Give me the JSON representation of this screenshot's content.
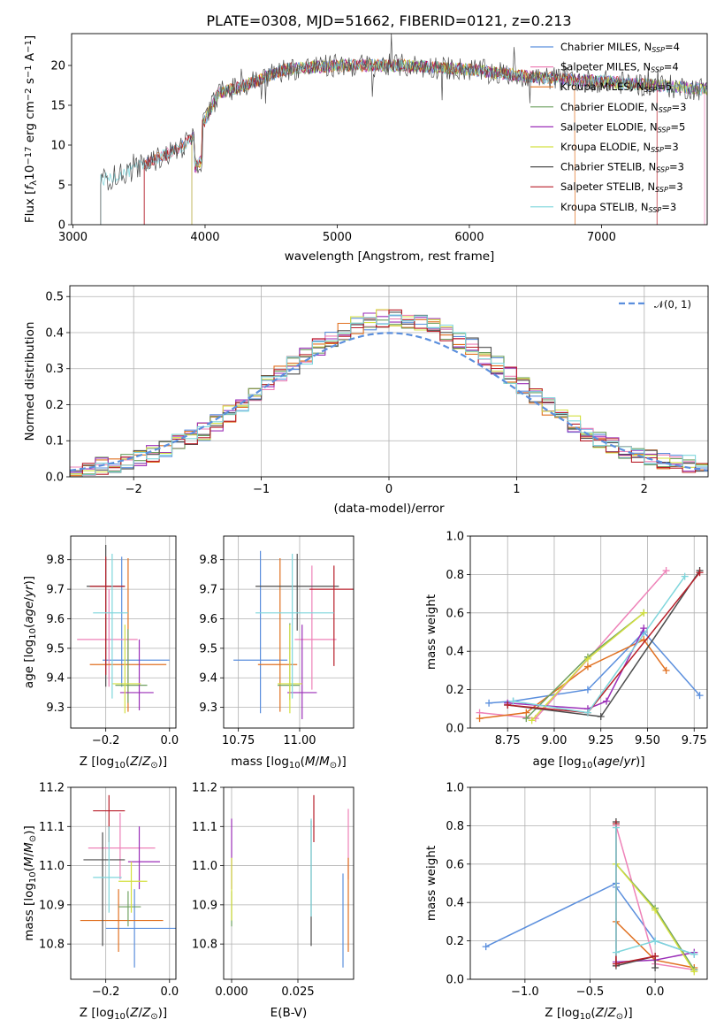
{
  "figure": {
    "title": "PLATE=0308, MJD=51662, FIBERID=0121, z=0.213"
  },
  "colors": {
    "Chabrier MILES": "#5b8fdd",
    "Salpeter MILES": "#ee82b8",
    "Kroupa MILES": "#e07020",
    "Chabrier ELODIE": "#6fa060",
    "Salpeter ELODIE": "#9b2fb8",
    "Kroupa ELODIE": "#d4e040",
    "Chabrier STELIB": "#4d4d4d",
    "Salpeter STELIB": "#b81f2a",
    "Kroupa STELIB": "#7fd6dc"
  },
  "chart_data": [
    {
      "id": "spectrum",
      "type": "line",
      "xlabel": "wavelength [Angstrom, rest frame]",
      "ylabel": "Flux [f_λ10^-17 erg cm^-2 s^-1 A^-1]",
      "xlim": [
        2990,
        7800
      ],
      "ylim": [
        0,
        24
      ],
      "xticks": [
        3000,
        4000,
        5000,
        6000,
        7000
      ],
      "yticks": [
        0,
        5,
        10,
        15,
        20
      ],
      "legend": "top-right",
      "legend_entries": [
        "Chabrier MILES, N_SSP=4",
        "Salpeter MILES, N_SSP=4",
        "Kroupa MILES, N_SSP=5",
        "Chabrier ELODIE, N_SSP=3",
        "Salpeter ELODIE, N_SSP=5",
        "Kroupa ELODIE, N_SSP=3",
        "Chabrier STELIB, N_SSP=3",
        "Salpeter STELIB, N_SSP=3",
        "Kroupa STELIB, N_SSP=3"
      ],
      "series_start_wavelength": {
        "Chabrier MILES": 3540,
        "Salpeter MILES": 3540,
        "Kroupa MILES": 3540,
        "Chabrier ELODIE": 3900,
        "Salpeter ELODIE": 3900,
        "Kroupa ELODIE": 3900,
        "Chabrier STELIB": 3210,
        "Salpeter STELIB": 3540,
        "Kroupa STELIB": 3210
      },
      "continuum": {
        "wavelength": [
          3210,
          3400,
          3600,
          3800,
          3950,
          4100,
          4300,
          4600,
          5000,
          5500,
          6000,
          6500,
          7000,
          7400,
          7800
        ],
        "flux": [
          5.5,
          6.5,
          8.0,
          9.5,
          11.5,
          16.5,
          17.5,
          19.5,
          20.0,
          20.0,
          19.5,
          18.5,
          18.0,
          17.5,
          17.0
        ]
      }
    },
    {
      "id": "residuals",
      "type": "line",
      "xlabel": "(data-model)/error",
      "ylabel": "Normed distribution",
      "xlim": [
        -2.5,
        2.5
      ],
      "ylim": [
        0,
        0.53
      ],
      "xticks": [
        -2,
        -1,
        0,
        1,
        2
      ],
      "yticks": [
        0.0,
        0.1,
        0.2,
        0.3,
        0.4,
        0.5
      ],
      "legend": "top-right",
      "reference_curve": "𝒩(0, 1)",
      "bin_width": 0.1,
      "histogram_mean": [
        0.02,
        0.025,
        0.03,
        0.035,
        0.04,
        0.05,
        0.065,
        0.08,
        0.095,
        0.11,
        0.125,
        0.15,
        0.175,
        0.205,
        0.235,
        0.26,
        0.285,
        0.31,
        0.335,
        0.36,
        0.385,
        0.405,
        0.42,
        0.43,
        0.44,
        0.44,
        0.435,
        0.425,
        0.415,
        0.4,
        0.38,
        0.36,
        0.335,
        0.31,
        0.28,
        0.25,
        0.22,
        0.195,
        0.17,
        0.145,
        0.12,
        0.1,
        0.085,
        0.07,
        0.06,
        0.05,
        0.045,
        0.04,
        0.035,
        0.03
      ]
    },
    {
      "id": "age-vs-Z",
      "type": "scatter",
      "xlabel": "Z [log10(Z/Z⊙)]",
      "ylabel": "age [log10(age/yr)]",
      "xlim": [
        -0.31,
        0.02
      ],
      "ylim": [
        9.23,
        9.88
      ],
      "xticks": [
        -0.2,
        0.0
      ],
      "yticks": [
        9.3,
        9.4,
        9.5,
        9.6,
        9.7,
        9.8
      ],
      "points": [
        {
          "model": "Chabrier MILES",
          "x": -0.15,
          "xerr": [
            0.06,
            0.15
          ],
          "y": 9.46,
          "yerr": [
            0.09,
            0.35
          ]
        },
        {
          "model": "Salpeter MILES",
          "x": -0.19,
          "xerr": [
            0.1,
            0.09
          ],
          "y": 9.53,
          "yerr": [
            0.16,
            0.17
          ]
        },
        {
          "model": "Kroupa MILES",
          "x": -0.13,
          "xerr": [
            0.12,
            0.12
          ],
          "y": 9.445,
          "yerr": [
            0.16,
            0.36
          ]
        },
        {
          "model": "Chabrier ELODIE",
          "x": -0.13,
          "xerr": [
            0.04,
            0.06
          ],
          "y": 9.375,
          "yerr": [
            0.06,
            0.19
          ]
        },
        {
          "model": "Salpeter ELODIE",
          "x": -0.095,
          "xerr": [
            0.06,
            0.045
          ],
          "y": 9.35,
          "yerr": [
            0.06,
            0.18
          ]
        },
        {
          "model": "Kroupa ELODIE",
          "x": -0.14,
          "xerr": [
            0.04,
            0.05
          ],
          "y": 9.38,
          "yerr": [
            0.1,
            0.2
          ]
        },
        {
          "model": "Chabrier STELIB",
          "x": -0.2,
          "xerr": [
            0.06,
            0.06
          ],
          "y": 9.71,
          "yerr": [
            0.34,
            0.14
          ]
        },
        {
          "model": "Salpeter STELIB",
          "x": -0.2,
          "xerr": [
            0.05,
            0.06
          ],
          "y": 9.71,
          "yerr": [
            0.3,
            0.1
          ]
        },
        {
          "model": "Kroupa STELIB",
          "x": -0.18,
          "xerr": [
            0.06,
            0.05
          ],
          "y": 9.62,
          "yerr": [
            0.29,
            0.2
          ]
        }
      ]
    },
    {
      "id": "age-vs-mass",
      "type": "scatter",
      "xlabel": "mass [log10(M/M⊙)]",
      "ylabel": "",
      "xlim": [
        10.69,
        11.22
      ],
      "ylim": [
        9.23,
        9.88
      ],
      "xticks": [
        10.75,
        11.0
      ],
      "yticks": [
        9.3,
        9.4,
        9.5,
        9.6,
        9.7,
        9.8
      ],
      "points": [
        {
          "model": "Chabrier MILES",
          "x": 10.84,
          "xerr": [
            0.11,
            0.11
          ],
          "y": 9.46,
          "yerr": [
            0.18,
            0.37
          ]
        },
        {
          "model": "Salpeter MILES",
          "x": 11.05,
          "xerr": [
            0.07,
            0.1
          ],
          "y": 9.53,
          "yerr": [
            0.17,
            0.25
          ]
        },
        {
          "model": "Kroupa MILES",
          "x": 10.92,
          "xerr": [
            0.09,
            0.07
          ],
          "y": 9.445,
          "yerr": [
            0.16,
            0.36
          ]
        },
        {
          "model": "Chabrier ELODIE",
          "x": 10.96,
          "xerr": [
            0.05,
            0.04
          ],
          "y": 9.375,
          "yerr": [
            0.05,
            0.21
          ]
        },
        {
          "model": "Salpeter ELODIE",
          "x": 11.01,
          "xerr": [
            0.06,
            0.06
          ],
          "y": 9.35,
          "yerr": [
            0.09,
            0.23
          ]
        },
        {
          "model": "Kroupa ELODIE",
          "x": 10.96,
          "xerr": [
            0.05,
            0.05
          ],
          "y": 9.38,
          "yerr": [
            0.1,
            0.2
          ]
        },
        {
          "model": "Chabrier STELIB",
          "x": 10.99,
          "xerr": [
            0.17,
            0.17
          ],
          "y": 9.71,
          "yerr": [
            0.15,
            0.11
          ]
        },
        {
          "model": "Salpeter STELIB",
          "x": 11.14,
          "xerr": [
            0.1,
            0.1
          ],
          "y": 9.7,
          "yerr": [
            0.26,
            0.08
          ]
        },
        {
          "model": "Kroupa STELIB",
          "x": 10.97,
          "xerr": [
            0.15,
            0.17
          ],
          "y": 9.62,
          "yerr": [
            0.29,
            0.2
          ]
        }
      ]
    },
    {
      "id": "mass-weight-vs-age",
      "type": "line",
      "xlabel": "age [log10(age/yr)]",
      "ylabel": "mass weight",
      "xlim": [
        8.55,
        9.82
      ],
      "ylim": [
        0.0,
        1.0
      ],
      "xticks": [
        8.75,
        9.0,
        9.25,
        9.5,
        9.75
      ],
      "yticks": [
        0.0,
        0.2,
        0.4,
        0.6,
        0.8,
        1.0
      ],
      "series": [
        {
          "model": "Chabrier MILES",
          "x": [
            8.65,
            8.78,
            9.18,
            9.48,
            9.78
          ],
          "y": [
            0.13,
            0.14,
            0.2,
            0.5,
            0.17
          ]
        },
        {
          "model": "Salpeter MILES",
          "x": [
            8.6,
            8.9,
            9.6
          ],
          "y": [
            0.08,
            0.05,
            0.82
          ]
        },
        {
          "model": "Kroupa MILES",
          "x": [
            8.6,
            8.85,
            9.18,
            9.48,
            9.6
          ],
          "y": [
            0.05,
            0.08,
            0.32,
            0.46,
            0.3
          ]
        },
        {
          "model": "Chabrier ELODIE",
          "x": [
            8.85,
            9.18,
            9.48
          ],
          "y": [
            0.05,
            0.37,
            0.6
          ]
        },
        {
          "model": "Salpeter ELODIE",
          "x": [
            8.75,
            9.18,
            9.28,
            9.48
          ],
          "y": [
            0.13,
            0.1,
            0.14,
            0.52
          ]
        },
        {
          "model": "Kroupa ELODIE",
          "x": [
            8.88,
            9.18,
            9.48
          ],
          "y": [
            0.04,
            0.36,
            0.6
          ]
        },
        {
          "model": "Chabrier STELIB",
          "x": [
            8.75,
            9.25,
            9.78
          ],
          "y": [
            0.12,
            0.06,
            0.82
          ]
        },
        {
          "model": "Salpeter STELIB",
          "x": [
            8.75,
            9.18,
            9.78
          ],
          "y": [
            0.12,
            0.08,
            0.81
          ]
        },
        {
          "model": "Kroupa STELIB",
          "x": [
            8.78,
            9.18,
            9.7
          ],
          "y": [
            0.14,
            0.08,
            0.79
          ]
        }
      ]
    },
    {
      "id": "mass-vs-Z",
      "type": "scatter",
      "xlabel": "Z [log10(Z/Z⊙)]",
      "ylabel": "mass [log10(M/M⊙)]",
      "xlim": [
        -0.31,
        0.02
      ],
      "ylim": [
        10.71,
        11.2
      ],
      "xticks": [
        -0.2,
        0.0
      ],
      "yticks": [
        10.8,
        10.9,
        11.0,
        11.1,
        11.2
      ],
      "points": [
        {
          "model": "Chabrier MILES",
          "x": -0.11,
          "xerr": [
            0.09,
            0.15
          ],
          "y": 10.84,
          "yerr": [
            0.1,
            0.1
          ]
        },
        {
          "model": "Salpeter MILES",
          "x": -0.155,
          "xerr": [
            0.1,
            0.11
          ],
          "y": 11.045,
          "yerr": [
            0.08,
            0.09
          ]
        },
        {
          "model": "Kroupa MILES",
          "x": -0.16,
          "xerr": [
            0.12,
            0.14
          ],
          "y": 10.86,
          "yerr": [
            0.08,
            0.08
          ]
        },
        {
          "model": "Chabrier ELODIE",
          "x": -0.13,
          "xerr": [
            0.03,
            0.04
          ],
          "y": 10.895,
          "yerr": [
            0.05,
            0.04
          ]
        },
        {
          "model": "Salpeter ELODIE",
          "x": -0.095,
          "xerr": [
            0.035,
            0.065
          ],
          "y": 11.01,
          "yerr": [
            0.07,
            0.09
          ]
        },
        {
          "model": "Kroupa ELODIE",
          "x": -0.12,
          "xerr": [
            0.04,
            0.05
          ],
          "y": 10.96,
          "yerr": [
            0.08,
            0.05
          ]
        },
        {
          "model": "Chabrier STELIB",
          "x": -0.21,
          "xerr": [
            0.06,
            0.07
          ],
          "y": 11.015,
          "yerr": [
            0.22,
            0.07
          ]
        },
        {
          "model": "Salpeter STELIB",
          "x": -0.19,
          "xerr": [
            0.05,
            0.05
          ],
          "y": 11.14,
          "yerr": [
            0.08,
            0.04
          ]
        },
        {
          "model": "Kroupa STELIB",
          "x": -0.19,
          "xerr": [
            0.05,
            0.04
          ],
          "y": 10.97,
          "yerr": [
            0.09,
            0.13
          ]
        }
      ]
    },
    {
      "id": "mass-vs-EBV",
      "type": "scatter",
      "xlabel": "E(B-V)",
      "ylabel": "",
      "xlim": [
        -0.003,
        0.046
      ],
      "ylim": [
        10.71,
        11.2
      ],
      "xticks": [
        0.0,
        0.025
      ],
      "yticks": [
        10.8,
        10.9,
        11.0,
        11.1,
        11.2
      ],
      "points": [
        {
          "model": "Chabrier MILES",
          "x": 0.042,
          "y": 10.84,
          "yerr": [
            0.1,
            0.14
          ]
        },
        {
          "model": "Salpeter MILES",
          "x": 0.044,
          "y": 11.045,
          "yerr": [
            0.08,
            0.1
          ]
        },
        {
          "model": "Kroupa MILES",
          "x": 0.044,
          "y": 10.86,
          "yerr": [
            0.08,
            0.16
          ]
        },
        {
          "model": "Chabrier ELODIE",
          "x": 0.0,
          "y": 10.895,
          "yerr": [
            0.05,
            0.04
          ]
        },
        {
          "model": "Salpeter ELODIE",
          "x": 0.0,
          "y": 11.01,
          "yerr": [
            0.07,
            0.11
          ]
        },
        {
          "model": "Kroupa ELODIE",
          "x": 0.0,
          "y": 10.96,
          "yerr": [
            0.1,
            0.06
          ]
        },
        {
          "model": "Chabrier STELIB",
          "x": 0.03,
          "y": 11.015,
          "yerr": [
            0.22,
            0.1
          ]
        },
        {
          "model": "Salpeter STELIB",
          "x": 0.031,
          "y": 11.14,
          "yerr": [
            0.08,
            0.04
          ]
        },
        {
          "model": "Kroupa STELIB",
          "x": 0.03,
          "y": 10.97,
          "yerr": [
            0.1,
            0.15
          ]
        }
      ]
    },
    {
      "id": "mass-weight-vs-Z",
      "type": "line",
      "xlabel": "Z [log10(Z/Z⊙)]",
      "ylabel": "mass weight",
      "xlim": [
        -1.42,
        0.4
      ],
      "ylim": [
        0.0,
        1.0
      ],
      "xticks": [
        -1.0,
        -0.5,
        0.0
      ],
      "yticks": [
        0.0,
        0.2,
        0.4,
        0.6,
        0.8,
        1.0
      ],
      "series": [
        {
          "model": "Chabrier MILES",
          "x": [
            -1.3,
            -0.3,
            -0.3,
            0.0,
            0.3
          ],
          "y": [
            0.17,
            0.5,
            0.48,
            0.2,
            0.13
          ]
        },
        {
          "model": "Salpeter MILES",
          "x": [
            -0.3,
            0.0,
            0.3
          ],
          "y": [
            0.8,
            0.08,
            0.05
          ]
        },
        {
          "model": "Kroupa MILES",
          "x": [
            -0.3,
            0.0,
            0.3
          ],
          "y": [
            0.3,
            0.1,
            0.06
          ]
        },
        {
          "model": "Chabrier ELODIE",
          "x": [
            -0.3,
            0.0,
            0.3
          ],
          "y": [
            0.6,
            0.37,
            0.05
          ]
        },
        {
          "model": "Salpeter ELODIE",
          "x": [
            -0.3,
            0.0,
            0.3
          ],
          "y": [
            0.09,
            0.1,
            0.14
          ]
        },
        {
          "model": "Kroupa ELODIE",
          "x": [
            -0.3,
            0.0,
            0.3
          ],
          "y": [
            0.6,
            0.36,
            0.04
          ]
        },
        {
          "model": "Chabrier STELIB",
          "x": [
            -0.3,
            -0.3,
            0.0,
            0.0
          ],
          "y": [
            0.82,
            0.07,
            0.12,
            0.06
          ]
        },
        {
          "model": "Salpeter STELIB",
          "x": [
            -0.3,
            -0.3,
            0.0
          ],
          "y": [
            0.81,
            0.08,
            0.12
          ]
        },
        {
          "model": "Kroupa STELIB",
          "x": [
            -0.3,
            -0.3,
            0.0,
            0.3
          ],
          "y": [
            0.79,
            0.14,
            0.2,
            0.13
          ]
        }
      ]
    }
  ]
}
